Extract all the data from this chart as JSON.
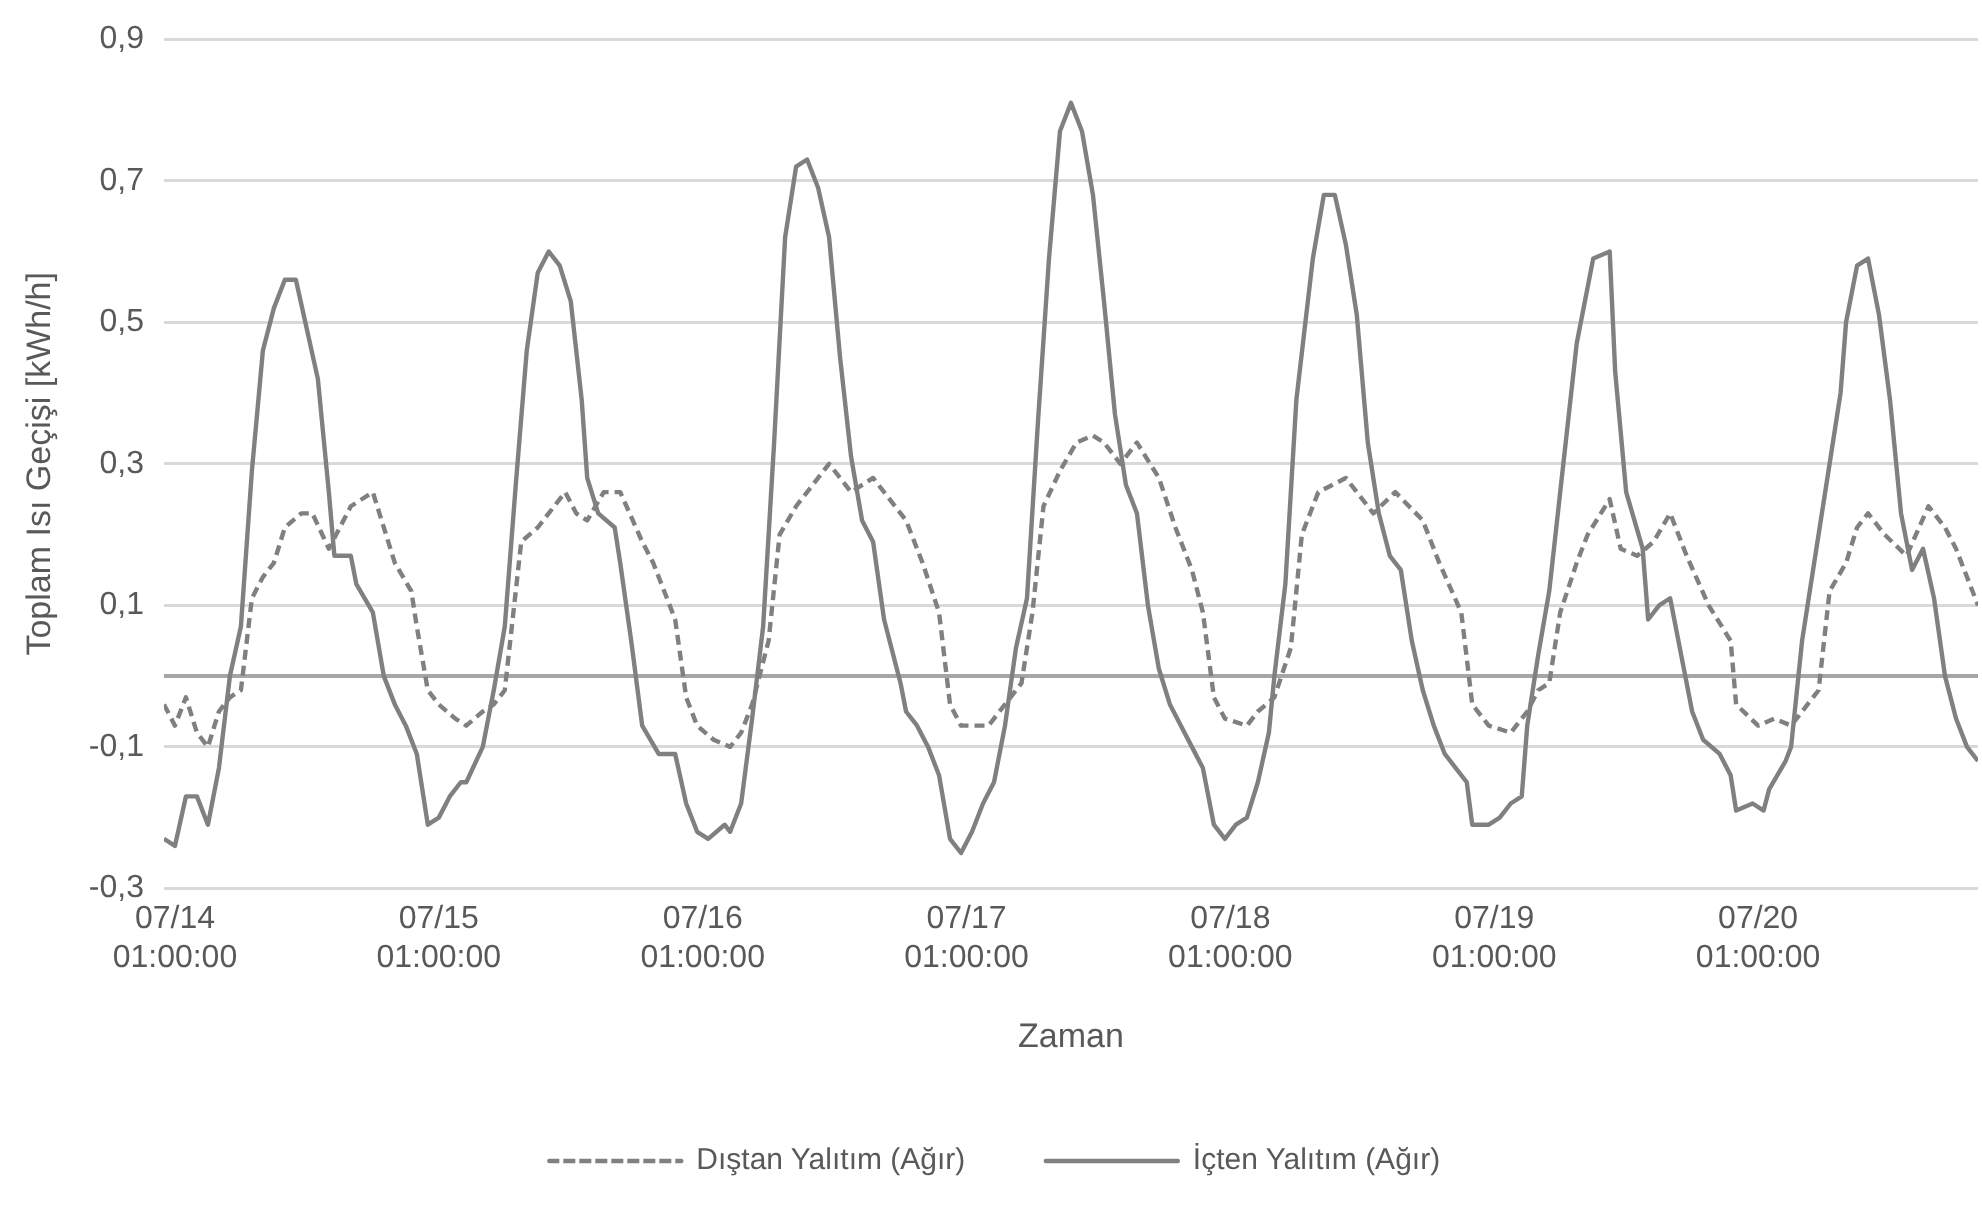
{
  "chart_data": {
    "type": "line",
    "xlabel": "Zaman",
    "ylabel": "Toplam Isı Geçişi [kWh/h]",
    "xlim": [
      "--07-14T00:00",
      "--07-20T21:00"
    ],
    "xticks": [
      {
        "value": "--07-14T01:00",
        "label": "07/14 01:00:00"
      },
      {
        "value": "--07-15T01:00",
        "label": "07/15 01:00:00"
      },
      {
        "value": "--07-16T01:00",
        "label": "07/16 01:00:00"
      },
      {
        "value": "--07-17T01:00",
        "label": "07/17 01:00:00"
      },
      {
        "value": "--07-18T01:00",
        "label": "07/18 01:00:00"
      },
      {
        "value": "--07-19T01:00",
        "label": "07/19 01:00:00"
      },
      {
        "value": "--07-20T01:00",
        "label": "07/20 01:00:00"
      }
    ],
    "ylim": [
      -0.3,
      0.9
    ],
    "yticks": [
      {
        "value": -0.3,
        "label": "-0,3"
      },
      {
        "value": -0.1,
        "label": "-0,1"
      },
      {
        "value": 0.1,
        "label": "0,1"
      },
      {
        "value": 0.3,
        "label": "0,3"
      },
      {
        "value": 0.5,
        "label": "0,5"
      },
      {
        "value": 0.7,
        "label": "0,7"
      },
      {
        "value": 0.9,
        "label": "0,9"
      }
    ],
    "grid": "y",
    "legend": "bottom",
    "marker": "none",
    "ref_lines": [
      {
        "axis": "y",
        "value": 0,
        "color": "#a6a6a6"
      }
    ],
    "series": [
      {
        "name": "Dıştan Yalıtım (Ağır)",
        "color": "#808080",
        "line_style": "dashed",
        "x": [
          "--07-14T00:00",
          "--07-14T01:00",
          "--07-14T02:00",
          "--07-14T03:00",
          "--07-14T04:00",
          "--07-14T05:00",
          "--07-14T06:00",
          "--07-14T07:00",
          "--07-14T08:00",
          "--07-14T09:00",
          "--07-14T10:00",
          "--07-14T11:00",
          "--07-14T12:30",
          "--07-14T13:30",
          "--07-14T15:00",
          "--07-14T16:00",
          "--07-14T17:00",
          "--07-14T19:00",
          "--07-14T20:00",
          "--07-14T21:00",
          "--07-14T22:30",
          "--07-14T23:00",
          "--07-15T00:00",
          "--07-15T01:00",
          "--07-15T02:30",
          "--07-15T03:30",
          "--07-15T05:00",
          "--07-15T06:00",
          "--07-15T07:00",
          "--07-15T08:00",
          "--07-15T08:30",
          "--07-15T10:00",
          "--07-15T11:30",
          "--07-15T12:30",
          "--07-15T13:30",
          "--07-15T14:30",
          "--07-15T16:00",
          "--07-15T17:30",
          "--07-15T19:30",
          "--07-15T20:30",
          "--07-15T22:30",
          "--07-15T23:30",
          "--07-16T00:30",
          "--07-16T02:00",
          "--07-16T03:30",
          "--07-16T04:30",
          "--07-16T05:30",
          "--07-16T07:00",
          "--07-16T08:00",
          "--07-16T09:30",
          "--07-16T11:00",
          "--07-16T12:30",
          "--07-16T14:30",
          "--07-16T16:30",
          "--07-16T18:00",
          "--07-16T19:30",
          "--07-16T21:00",
          "--07-16T22:30",
          "--07-16T23:30",
          "--07-17T00:30",
          "--07-17T03:00",
          "--07-17T04:30",
          "--07-17T06:00",
          "--07-17T07:00",
          "--07-17T08:00",
          "--07-17T09:30",
          "--07-17T11:00",
          "--07-17T12:30",
          "--07-17T13:30",
          "--07-17T15:00",
          "--07-17T16:30",
          "--07-17T18:30",
          "--07-17T20:00",
          "--07-17T21:30",
          "--07-17T22:30",
          "--07-17T23:30",
          "--07-18T00:30",
          "--07-18T02:30",
          "--07-18T03:30",
          "--07-18T05:00",
          "--07-18T06:30",
          "--07-18T07:30",
          "--07-18T09:00",
          "--07-18T11:30",
          "--07-18T14:00",
          "--07-18T16:00",
          "--07-18T18:30",
          "--07-18T20:00",
          "--07-18T22:00",
          "--07-18T23:00",
          "--07-19T00:30",
          "--07-19T02:30",
          "--07-19T04:00",
          "--07-19T05:00",
          "--07-19T06:00",
          "--07-19T07:00",
          "--07-19T08:30",
          "--07-19T09:30",
          "--07-19T11:30",
          "--07-19T12:30",
          "--07-19T14:00",
          "--07-19T15:30",
          "--07-19T17:00",
          "--07-19T18:30",
          "--07-19T20:30",
          "--07-19T22:30",
          "--07-19T23:00",
          "--07-20T01:00",
          "--07-20T02:30",
          "--07-20T04:00",
          "--07-20T05:30",
          "--07-20T06:30",
          "--07-20T07:30",
          "--07-20T09:00",
          "--07-20T10:00",
          "--07-20T11:00",
          "--07-20T12:30",
          "--07-20T14:30",
          "--07-20T16:30",
          "--07-20T18:00",
          "--07-20T19:00",
          "--07-20T21:00"
        ],
        "values": [
          -0.04,
          -0.07,
          -0.03,
          -0.08,
          -0.1,
          -0.05,
          -0.03,
          -0.02,
          0.11,
          0.14,
          0.16,
          0.21,
          0.23,
          0.23,
          0.18,
          0.21,
          0.24,
          0.26,
          0.21,
          0.16,
          0.12,
          0.07,
          -0.02,
          -0.04,
          -0.06,
          -0.07,
          -0.05,
          -0.04,
          -0.02,
          0.12,
          0.19,
          0.21,
          0.24,
          0.26,
          0.23,
          0.22,
          0.26,
          0.26,
          0.19,
          0.16,
          0.08,
          -0.03,
          -0.07,
          -0.09,
          -0.1,
          -0.08,
          -0.04,
          0.05,
          0.2,
          0.24,
          0.27,
          0.3,
          0.26,
          0.28,
          0.25,
          0.22,
          0.16,
          0.09,
          -0.04,
          -0.07,
          -0.07,
          -0.04,
          -0.01,
          0.09,
          0.24,
          0.29,
          0.33,
          0.34,
          0.33,
          0.3,
          0.33,
          0.28,
          0.21,
          0.15,
          0.09,
          -0.03,
          -0.06,
          -0.07,
          -0.05,
          -0.03,
          0.04,
          0.2,
          0.26,
          0.28,
          0.23,
          0.26,
          0.22,
          0.16,
          0.09,
          -0.04,
          -0.07,
          -0.08,
          -0.05,
          -0.02,
          -0.01,
          0.09,
          0.16,
          0.2,
          0.25,
          0.18,
          0.17,
          0.19,
          0.23,
          0.17,
          0.1,
          0.05,
          -0.04,
          -0.07,
          -0.06,
          -0.07,
          -0.04,
          -0.02,
          0.12,
          0.16,
          0.21,
          0.23,
          0.2,
          0.17,
          0.24,
          0.21,
          0.18,
          0.1
        ]
      },
      {
        "name": "İçten Yalıtım (Ağır)",
        "color": "#808080",
        "line_style": "solid",
        "x": [
          "--07-14T00:00",
          "--07-14T01:00",
          "--07-14T02:00",
          "--07-14T03:00",
          "--07-14T04:00",
          "--07-14T05:00",
          "--07-14T06:00",
          "--07-14T07:00",
          "--07-14T08:00",
          "--07-14T09:00",
          "--07-14T10:00",
          "--07-14T11:00",
          "--07-14T12:00",
          "--07-14T13:00",
          "--07-14T14:00",
          "--07-14T15:00",
          "--07-14T15:30",
          "--07-14T17:00",
          "--07-14T17:30",
          "--07-14T19:00",
          "--07-14T20:00",
          "--07-14T21:00",
          "--07-14T22:00",
          "--07-14T23:00",
          "--07-15T00:00",
          "--07-15T01:00",
          "--07-15T02:00",
          "--07-15T03:00",
          "--07-15T03:30",
          "--07-15T05:00",
          "--07-15T06:00",
          "--07-15T07:00",
          "--07-15T08:00",
          "--07-15T09:00",
          "--07-15T10:00",
          "--07-15T11:00",
          "--07-15T12:00",
          "--07-15T13:00",
          "--07-15T14:00",
          "--07-15T14:30",
          "--07-15T15:30",
          "--07-15T17:00",
          "--07-15T17:30",
          "--07-15T18:30",
          "--07-15T19:30",
          "--07-15T21:00",
          "--07-15T22:30",
          "--07-15T23:30",
          "--07-16T00:30",
          "--07-16T01:30",
          "--07-16T03:00",
          "--07-16T03:30",
          "--07-16T04:30",
          "--07-16T05:30",
          "--07-16T06:30",
          "--07-16T07:30",
          "--07-16T08:30",
          "--07-16T09:30",
          "--07-16T10:30",
          "--07-16T11:30",
          "--07-16T12:30",
          "--07-16T13:30",
          "--07-16T14:30",
          "--07-16T15:30",
          "--07-16T16:30",
          "--07-16T17:30",
          "--07-16T19:00",
          "--07-16T19:30",
          "--07-16T20:30",
          "--07-16T21:30",
          "--07-16T22:30",
          "--07-16T23:30",
          "--07-17T00:30",
          "--07-17T01:30",
          "--07-17T02:30",
          "--07-17T03:30",
          "--07-17T04:30",
          "--07-17T05:30",
          "--07-17T06:30",
          "--07-17T07:30",
          "--07-17T08:30",
          "--07-17T09:30",
          "--07-17T10:30",
          "--07-17T11:30",
          "--07-17T12:30",
          "--07-17T13:30",
          "--07-17T14:30",
          "--07-17T15:30",
          "--07-17T16:30",
          "--07-17T17:30",
          "--07-17T18:30",
          "--07-17T19:30",
          "--07-17T20:30",
          "--07-17T21:30",
          "--07-17T22:30",
          "--07-17T23:30",
          "--07-18T00:30",
          "--07-18T01:30",
          "--07-18T02:30",
          "--07-18T03:30",
          "--07-18T04:30",
          "--07-18T05:00",
          "--07-18T06:00",
          "--07-18T07:00",
          "--07-18T08:30",
          "--07-18T09:30",
          "--07-18T10:30",
          "--07-18T11:30",
          "--07-18T12:30",
          "--07-18T13:30",
          "--07-18T14:30",
          "--07-18T15:30",
          "--07-18T16:30",
          "--07-18T17:30",
          "--07-18T18:30",
          "--07-18T19:30",
          "--07-18T20:30",
          "--07-18T21:30",
          "--07-18T22:30",
          "--07-18T23:00",
          "--07-19T00:30",
          "--07-19T01:30",
          "--07-19T02:30",
          "--07-19T03:30",
          "--07-19T04:00",
          "--07-19T05:00",
          "--07-19T06:00",
          "--07-19T07:00",
          "--07-19T08:30",
          "--07-19T09:30",
          "--07-19T10:00",
          "--07-19T11:30",
          "--07-19T12:00",
          "--07-19T13:00",
          "--07-19T14:30",
          "--07-19T15:00",
          "--07-19T16:00",
          "--07-19T17:00",
          "--07-19T18:00",
          "--07-19T19:00",
          "--07-19T20:00",
          "--07-19T21:30",
          "--07-19T22:30",
          "--07-19T23:00",
          "--07-20T00:30",
          "--07-20T01:30",
          "--07-20T02:00",
          "--07-20T03:30",
          "--07-20T04:00",
          "--07-20T05:00",
          "--07-20T06:00",
          "--07-20T07:30",
          "--07-20T08:30",
          "--07-20T09:00",
          "--07-20T10:00",
          "--07-20T11:00",
          "--07-20T12:00",
          "--07-20T13:00",
          "--07-20T14:00",
          "--07-20T15:00",
          "--07-20T16:00",
          "--07-20T17:00",
          "--07-20T18:00",
          "--07-20T19:00",
          "--07-20T20:00",
          "--07-20T21:00"
        ],
        "values": [
          -0.23,
          -0.24,
          -0.17,
          -0.17,
          -0.21,
          -0.13,
          0,
          0.07,
          0.29,
          0.46,
          0.52,
          0.56,
          0.56,
          0.49,
          0.42,
          0.26,
          0.17,
          0.17,
          0.13,
          0.09,
          0,
          -0.04,
          -0.07,
          -0.11,
          -0.21,
          -0.2,
          -0.17,
          -0.15,
          -0.15,
          -0.1,
          -0.02,
          0.07,
          0.27,
          0.46,
          0.57,
          0.6,
          0.58,
          0.53,
          0.39,
          0.28,
          0.23,
          0.21,
          0.16,
          0.05,
          -0.07,
          -0.11,
          -0.11,
          -0.18,
          -0.22,
          -0.23,
          -0.21,
          -0.22,
          -0.18,
          -0.06,
          0.07,
          0.33,
          0.62,
          0.72,
          0.73,
          0.69,
          0.62,
          0.45,
          0.31,
          0.22,
          0.19,
          0.08,
          -0.01,
          -0.05,
          -0.07,
          -0.1,
          -0.14,
          -0.23,
          -0.25,
          -0.22,
          -0.18,
          -0.15,
          -0.07,
          0.04,
          0.11,
          0.36,
          0.59,
          0.77,
          0.81,
          0.77,
          0.68,
          0.53,
          0.37,
          0.27,
          0.23,
          0.1,
          0.01,
          -0.04,
          -0.07,
          -0.1,
          -0.13,
          -0.21,
          -0.23,
          -0.21,
          -0.2,
          -0.15,
          -0.08,
          0,
          0.13,
          0.39,
          0.59,
          0.68,
          0.68,
          0.61,
          0.51,
          0.33,
          0.23,
          0.17,
          0.15,
          0.05,
          -0.02,
          -0.07,
          -0.11,
          -0.13,
          -0.15,
          -0.21,
          -0.21,
          -0.2,
          -0.18,
          -0.17,
          -0.07,
          0.03,
          0.12,
          0.26,
          0.47,
          0.55,
          0.59,
          0.6,
          0.43,
          0.26,
          0.18,
          0.08,
          0.1,
          0.11,
          0.03,
          -0.05,
          -0.09,
          -0.11,
          -0.14,
          -0.19,
          -0.18,
          -0.19,
          -0.16,
          -0.12,
          -0.1,
          0.05,
          0.15,
          0.3,
          0.4,
          0.5,
          0.58,
          0.59,
          0.51,
          0.39,
          0.23,
          0.15,
          0.18,
          0.11,
          0,
          -0.06,
          -0.1,
          -0.12
        ]
      }
    ]
  }
}
